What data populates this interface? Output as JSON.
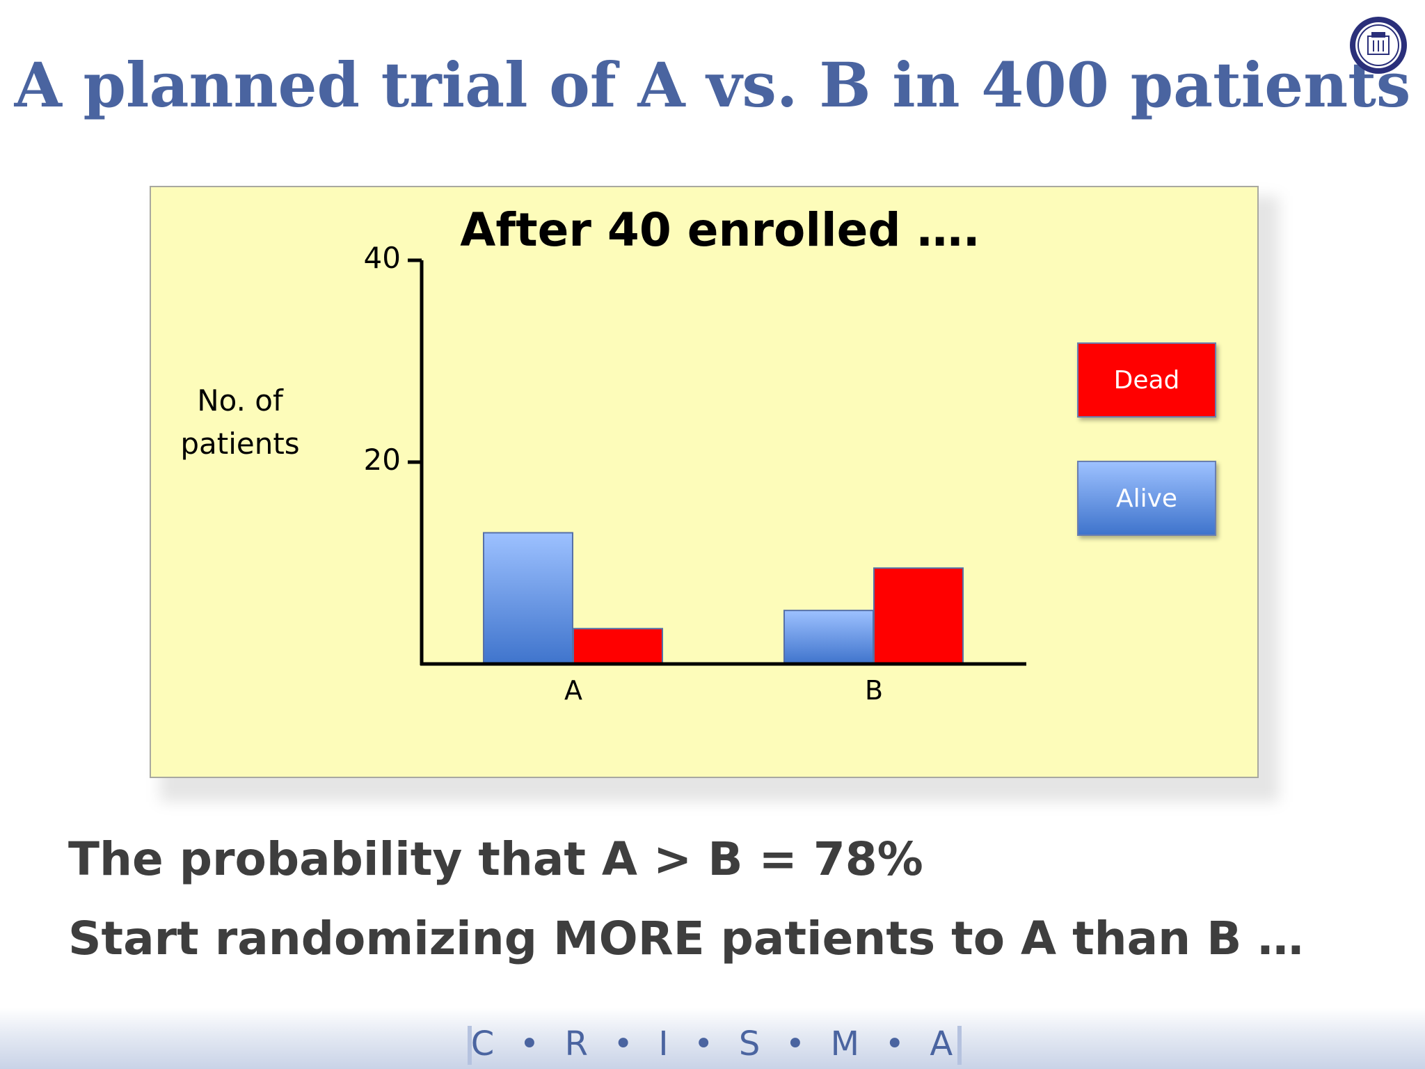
{
  "slide": {
    "title": "A planned trial of A vs. B in 400 patients",
    "body_lines": [
      "The probability that A > B = 78%",
      "Start randomizing MORE patients to A than B …"
    ],
    "footer": "C  •  R  •  I  •  S  •  M  •  A",
    "seal_icon": "university-seal-icon"
  },
  "chart_data": {
    "type": "bar",
    "title": "After 40 enrolled ….",
    "xlabel": "",
    "ylabel": "No. of patients",
    "categories": [
      "A",
      "B"
    ],
    "yticks": [
      "20",
      "40"
    ],
    "ylim": [
      0,
      40
    ],
    "series": [
      {
        "name": "Alive",
        "values": [
          13,
          5.3
        ],
        "color": "#5b8fe0"
      },
      {
        "name": "Dead",
        "values": [
          3.5,
          9.5
        ],
        "color": "#ff0000"
      }
    ],
    "legend": {
      "placement": "right",
      "dead_label": "Dead",
      "alive_label": "Alive"
    },
    "background": "#fdfcba"
  }
}
